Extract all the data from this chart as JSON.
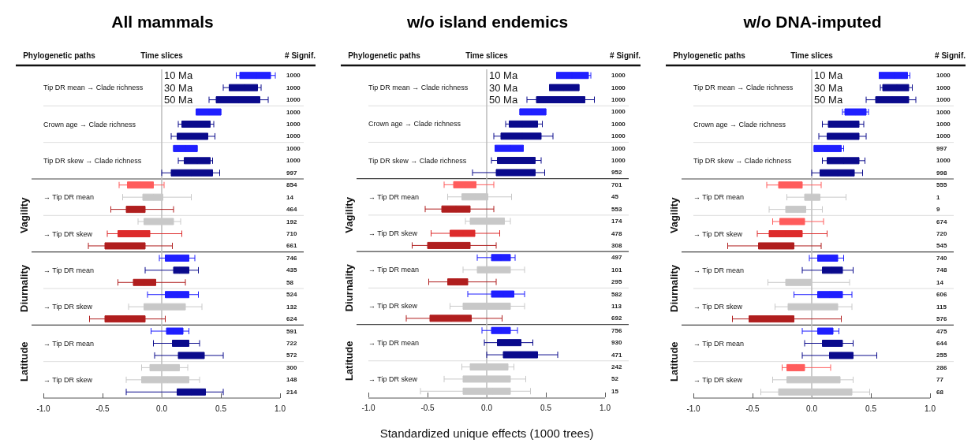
{
  "chart_data": [
    {
      "type": "box",
      "orientation": "horizontal",
      "title": "All mammals",
      "categories": [
        null,
        "Tip DR mean → Clade richness",
        null,
        null,
        "Crown age → Clade richness",
        null,
        null,
        "Tip DR skew → Clade richness",
        null,
        null,
        "→ Tip DR mean",
        null,
        null,
        "→ Tip DR skew",
        null,
        null,
        "→ Tip DR mean",
        null,
        null,
        "→ Tip DR skew",
        null,
        null,
        "→ Tip DR mean",
        null,
        null,
        "→ Tip DR skew",
        null
      ],
      "boxes": [
        {
          "low": 0.63,
          "q1": 0.66,
          "median": 0.8,
          "q3": 0.92,
          "high": 0.96
        },
        {
          "low": 0.52,
          "q1": 0.57,
          "median": 0.7,
          "q3": 0.81,
          "high": 0.84
        },
        {
          "low": 0.4,
          "q1": 0.46,
          "median": 0.65,
          "q3": 0.83,
          "high": 0.9
        },
        {
          "low": 0.29,
          "q1": 0.29,
          "median": 0.4,
          "q3": 0.5,
          "high": 0.5
        },
        {
          "low": 0.14,
          "q1": 0.17,
          "median": 0.3,
          "q3": 0.41,
          "high": 0.44
        },
        {
          "low": 0.08,
          "q1": 0.13,
          "median": 0.25,
          "q3": 0.39,
          "high": 0.45
        },
        {
          "low": 0.1,
          "q1": 0.1,
          "median": 0.2,
          "q3": 0.3,
          "high": 0.3
        },
        {
          "low": 0.14,
          "q1": 0.19,
          "median": 0.3,
          "q3": 0.41,
          "high": 0.43
        },
        {
          "low": 0.0,
          "q1": 0.08,
          "median": 0.25,
          "q3": 0.43,
          "high": 0.49
        },
        {
          "low": -0.36,
          "q1": -0.29,
          "median": -0.18,
          "q3": -0.07,
          "high": 0.02
        },
        {
          "low": -0.33,
          "q1": -0.16,
          "median": -0.07,
          "q3": 0.01,
          "high": 0.25
        },
        {
          "low": -0.43,
          "q1": -0.3,
          "median": -0.22,
          "q3": -0.14,
          "high": 0.1
        },
        {
          "low": -0.2,
          "q1": -0.15,
          "median": 0.0,
          "q3": 0.1,
          "high": 0.16
        },
        {
          "low": -0.46,
          "q1": -0.37,
          "median": -0.25,
          "q3": -0.1,
          "high": 0.17
        },
        {
          "low": -0.62,
          "q1": -0.48,
          "median": -0.3,
          "q3": -0.14,
          "high": 0.09
        },
        {
          "low": -0.02,
          "q1": 0.03,
          "median": 0.13,
          "q3": 0.23,
          "high": 0.28
        },
        {
          "low": -0.14,
          "q1": 0.1,
          "median": 0.15,
          "q3": 0.23,
          "high": 0.31
        },
        {
          "low": -0.37,
          "q1": -0.24,
          "median": -0.15,
          "q3": -0.05,
          "high": 0.2
        },
        {
          "low": -0.12,
          "q1": 0.03,
          "median": 0.13,
          "q3": 0.23,
          "high": 0.31
        },
        {
          "low": -0.28,
          "q1": -0.15,
          "median": 0.0,
          "q3": 0.2,
          "high": 0.34
        },
        {
          "low": -0.61,
          "q1": -0.48,
          "median": -0.3,
          "q3": -0.14,
          "high": 0.03
        },
        {
          "low": -0.09,
          "q1": 0.04,
          "median": 0.1,
          "q3": 0.18,
          "high": 0.23
        },
        {
          "low": -0.07,
          "q1": 0.09,
          "median": 0.16,
          "q3": 0.23,
          "high": 0.32
        },
        {
          "low": -0.06,
          "q1": 0.14,
          "median": 0.25,
          "q3": 0.36,
          "high": 0.52
        },
        {
          "low": -0.17,
          "q1": -0.1,
          "median": 0.0,
          "q3": 0.15,
          "high": 0.22
        },
        {
          "low": -0.3,
          "q1": -0.17,
          "median": 0.05,
          "q3": 0.23,
          "high": 0.32
        },
        {
          "low": -0.3,
          "q1": 0.13,
          "median": 0.25,
          "q3": 0.37,
          "high": 0.52
        }
      ],
      "colors": [
        "#1f1fff",
        "#0a0a8c",
        "#0a0a8c",
        "#1f1fff",
        "#0a0a8c",
        "#0a0a8c",
        "#1f1fff",
        "#0a0a8c",
        "#0a0a8c",
        "#ff5c5c",
        "#c8c8c8",
        "#b01e1e",
        "#c8c8c8",
        "#dd2b2b",
        "#b01e1e",
        "#1f1fff",
        "#0a0a8c",
        "#b01e1e",
        "#1f1fff",
        "#c8c8c8",
        "#b01e1e",
        "#1f1fff",
        "#0a0a8c",
        "#0a0a8c",
        "#c8c8c8",
        "#c8c8c8",
        "#0a0a8c"
      ],
      "value_labels": [
        "1000",
        "1000",
        "1000",
        "1000",
        "1000",
        "1000",
        "1000",
        "1000",
        "997",
        "854",
        "14",
        "464",
        "192",
        "710",
        "661",
        "746",
        "435",
        "58",
        "524",
        "132",
        "624",
        "591",
        "722",
        "572",
        "300",
        "148",
        "214"
      ],
      "xlim": [
        -1,
        1
      ],
      "xticks": [
        {
          "value": -1,
          "label": "-1.0"
        },
        {
          "value": -0.5,
          "label": "-0.5"
        },
        {
          "value": 0,
          "label": "0.0"
        },
        {
          "value": 0.5,
          "label": "0.5"
        },
        {
          "value": 1,
          "label": "1.0"
        }
      ],
      "ref_lines": [
        {
          "axis": "x",
          "value": 0,
          "color": "#bbbbbb"
        }
      ],
      "annotations": [
        "Phylogenetic paths",
        "Time slices",
        "# Signif.",
        "10 Ma",
        "30 Ma",
        "50 Ma",
        "Vagility",
        "Diurnality",
        "Latitude"
      ]
    },
    {
      "type": "box",
      "orientation": "horizontal",
      "title": "w/o island endemics",
      "xlabel": "Standardized unique effects (1000 trees)",
      "categories": [
        null,
        "Tip DR mean → Clade richness",
        null,
        null,
        "Crown age → Clade richness",
        null,
        null,
        "Tip DR skew → Clade richness",
        null,
        null,
        "→ Tip DR mean",
        null,
        null,
        "→ Tip DR skew",
        null,
        null,
        "→ Tip DR mean",
        null,
        null,
        "→ Tip DR skew",
        null,
        null,
        "→ Tip DR mean",
        null,
        null,
        "→ Tip DR skew",
        null
      ],
      "boxes": [
        {
          "low": 0.59,
          "q1": 0.59,
          "median": 0.72,
          "q3": 0.86,
          "high": 0.88
        },
        {
          "low": 0.53,
          "q1": 0.53,
          "median": 0.65,
          "q3": 0.78,
          "high": 0.78
        },
        {
          "low": 0.34,
          "q1": 0.42,
          "median": 0.62,
          "q3": 0.83,
          "high": 0.91
        },
        {
          "low": 0.28,
          "q1": 0.28,
          "median": 0.38,
          "q3": 0.5,
          "high": 0.5
        },
        {
          "low": 0.16,
          "q1": 0.19,
          "median": 0.3,
          "q3": 0.43,
          "high": 0.47
        },
        {
          "low": 0.06,
          "q1": 0.12,
          "median": 0.3,
          "q3": 0.46,
          "high": 0.56
        },
        {
          "low": 0.07,
          "q1": 0.07,
          "median": 0.2,
          "q3": 0.31,
          "high": 0.31
        },
        {
          "low": 0.04,
          "q1": 0.09,
          "median": 0.25,
          "q3": 0.41,
          "high": 0.46
        },
        {
          "low": -0.12,
          "q1": 0.08,
          "median": 0.25,
          "q3": 0.41,
          "high": 0.49
        },
        {
          "low": -0.36,
          "q1": -0.28,
          "median": -0.18,
          "q3": -0.09,
          "high": 0.06
        },
        {
          "low": -0.33,
          "q1": -0.21,
          "median": -0.1,
          "q3": 0.01,
          "high": 0.21
        },
        {
          "low": -0.52,
          "q1": -0.38,
          "median": -0.26,
          "q3": -0.14,
          "high": 0.06
        },
        {
          "low": -0.18,
          "q1": -0.14,
          "median": 0.0,
          "q3": 0.15,
          "high": 0.2
        },
        {
          "low": -0.47,
          "q1": -0.31,
          "median": -0.2,
          "q3": -0.1,
          "high": 0.11
        },
        {
          "low": -0.63,
          "q1": -0.5,
          "median": -0.32,
          "q3": -0.14,
          "high": 0.08
        },
        {
          "low": -0.08,
          "q1": 0.04,
          "median": 0.12,
          "q3": 0.2,
          "high": 0.24
        },
        {
          "low": -0.2,
          "q1": -0.08,
          "median": 0.05,
          "q3": 0.2,
          "high": 0.32
        },
        {
          "low": -0.49,
          "q1": -0.33,
          "median": -0.25,
          "q3": -0.16,
          "high": 0.08
        },
        {
          "low": -0.16,
          "q1": 0.04,
          "median": 0.14,
          "q3": 0.23,
          "high": 0.32
        },
        {
          "low": -0.31,
          "q1": -0.2,
          "median": 0.0,
          "q3": 0.2,
          "high": 0.32
        },
        {
          "low": -0.68,
          "q1": -0.48,
          "median": -0.3,
          "q3": -0.13,
          "high": 0.13
        },
        {
          "low": -0.04,
          "q1": 0.04,
          "median": 0.12,
          "q3": 0.2,
          "high": 0.26
        },
        {
          "low": -0.02,
          "q1": 0.09,
          "median": 0.19,
          "q3": 0.29,
          "high": 0.39
        },
        {
          "low": 0.0,
          "q1": 0.14,
          "median": 0.28,
          "q3": 0.43,
          "high": 0.6
        },
        {
          "low": -0.21,
          "q1": -0.14,
          "median": 0.0,
          "q3": 0.18,
          "high": 0.23
        },
        {
          "low": -0.36,
          "q1": -0.2,
          "median": 0.0,
          "q3": 0.2,
          "high": 0.33
        },
        {
          "low": -0.56,
          "q1": -0.2,
          "median": 0.05,
          "q3": 0.2,
          "high": 0.37
        }
      ],
      "colors": [
        "#1f1fff",
        "#0a0a8c",
        "#0a0a8c",
        "#1f1fff",
        "#0a0a8c",
        "#0a0a8c",
        "#1f1fff",
        "#0a0a8c",
        "#0a0a8c",
        "#ff5c5c",
        "#c8c8c8",
        "#b01e1e",
        "#c8c8c8",
        "#dd2b2b",
        "#b01e1e",
        "#1f1fff",
        "#c8c8c8",
        "#b01e1e",
        "#1f1fff",
        "#c8c8c8",
        "#b01e1e",
        "#1f1fff",
        "#0a0a8c",
        "#0a0a8c",
        "#c8c8c8",
        "#c8c8c8",
        "#c8c8c8"
      ],
      "value_labels": [
        "1000",
        "1000",
        "1000",
        "1000",
        "1000",
        "1000",
        "1000",
        "1000",
        "952",
        "701",
        "45",
        "553",
        "174",
        "478",
        "308",
        "497",
        "101",
        "295",
        "582",
        "113",
        "692",
        "756",
        "930",
        "471",
        "242",
        "52",
        "15"
      ],
      "xlim": [
        -1,
        1
      ],
      "xticks": [
        {
          "value": -1,
          "label": "-1.0"
        },
        {
          "value": -0.5,
          "label": "-0.5"
        },
        {
          "value": 0,
          "label": "0.0"
        },
        {
          "value": 0.5,
          "label": "0.5"
        },
        {
          "value": 1,
          "label": "1.0"
        }
      ],
      "ref_lines": [
        {
          "axis": "x",
          "value": 0,
          "color": "#bbbbbb"
        }
      ],
      "annotations": [
        "Phylogenetic paths",
        "Time slices",
        "# Signif.",
        "10 Ma",
        "30 Ma",
        "50 Ma",
        "Vagility",
        "Diurnality",
        "Latitude"
      ]
    },
    {
      "type": "box",
      "orientation": "horizontal",
      "title": "w/o DNA-imputed",
      "categories": [
        null,
        "Tip DR mean → Clade richness",
        null,
        null,
        "Crown age → Clade richness",
        null,
        null,
        "Tip DR skew → Clade richness",
        null,
        null,
        "→ Tip DR mean",
        null,
        null,
        "→ Tip DR skew",
        null,
        null,
        "→ Tip DR mean",
        null,
        null,
        "→ Tip DR skew",
        null,
        null,
        "→ Tip DR mean",
        null,
        null,
        "→ Tip DR skew",
        null
      ],
      "boxes": [
        {
          "low": 0.57,
          "q1": 0.57,
          "median": 0.7,
          "q3": 0.81,
          "high": 0.83
        },
        {
          "low": 0.58,
          "q1": 0.6,
          "median": 0.72,
          "q3": 0.82,
          "high": 0.85
        },
        {
          "low": 0.46,
          "q1": 0.54,
          "median": 0.68,
          "q3": 0.82,
          "high": 0.88
        },
        {
          "low": 0.26,
          "q1": 0.28,
          "median": 0.37,
          "q3": 0.46,
          "high": 0.48
        },
        {
          "low": 0.09,
          "q1": 0.14,
          "median": 0.27,
          "q3": 0.4,
          "high": 0.44
        },
        {
          "low": 0.06,
          "q1": 0.13,
          "median": 0.27,
          "q3": 0.4,
          "high": 0.46
        },
        {
          "low": 0.02,
          "q1": 0.02,
          "median": 0.13,
          "q3": 0.25,
          "high": 0.27
        },
        {
          "low": 0.09,
          "q1": 0.13,
          "median": 0.27,
          "q3": 0.4,
          "high": 0.45
        },
        {
          "low": 0.0,
          "q1": 0.07,
          "median": 0.22,
          "q3": 0.36,
          "high": 0.43
        },
        {
          "low": -0.38,
          "q1": -0.28,
          "median": -0.18,
          "q3": -0.08,
          "high": 0.08
        },
        {
          "low": -0.21,
          "q1": -0.06,
          "median": 0.0,
          "q3": 0.07,
          "high": 0.29
        },
        {
          "low": -0.36,
          "q1": -0.22,
          "median": -0.12,
          "q3": -0.05,
          "high": 0.09
        },
        {
          "low": -0.33,
          "q1": -0.27,
          "median": -0.17,
          "q3": -0.06,
          "high": 0.1
        },
        {
          "low": -0.46,
          "q1": -0.36,
          "median": -0.22,
          "q3": -0.08,
          "high": 0.13
        },
        {
          "low": -0.71,
          "q1": -0.45,
          "median": -0.3,
          "q3": -0.15,
          "high": 0.08
        },
        {
          "low": -0.02,
          "q1": 0.05,
          "median": 0.13,
          "q3": 0.22,
          "high": 0.27
        },
        {
          "low": -0.08,
          "q1": 0.09,
          "median": 0.17,
          "q3": 0.26,
          "high": 0.35
        },
        {
          "low": -0.37,
          "q1": -0.22,
          "median": -0.1,
          "q3": 0.0,
          "high": 0.32
        },
        {
          "low": -0.15,
          "q1": 0.05,
          "median": 0.15,
          "q3": 0.26,
          "high": 0.34
        },
        {
          "low": -0.31,
          "q1": -0.2,
          "median": 0.0,
          "q3": 0.22,
          "high": 0.34
        },
        {
          "low": -0.67,
          "q1": -0.53,
          "median": -0.35,
          "q3": -0.15,
          "high": 0.25
        },
        {
          "low": -0.08,
          "q1": 0.05,
          "median": 0.11,
          "q3": 0.18,
          "high": 0.23
        },
        {
          "low": -0.06,
          "q1": 0.09,
          "median": 0.17,
          "q3": 0.26,
          "high": 0.35
        },
        {
          "low": -0.08,
          "q1": 0.15,
          "median": 0.25,
          "q3": 0.35,
          "high": 0.55
        },
        {
          "low": -0.25,
          "q1": -0.21,
          "median": -0.13,
          "q3": -0.06,
          "high": 0.16
        },
        {
          "low": -0.33,
          "q1": -0.21,
          "median": 0.0,
          "q3": 0.24,
          "high": 0.35
        },
        {
          "low": -0.43,
          "q1": -0.28,
          "median": 0.05,
          "q3": 0.34,
          "high": 0.49
        }
      ],
      "colors": [
        "#1f1fff",
        "#0a0a8c",
        "#0a0a8c",
        "#1f1fff",
        "#0a0a8c",
        "#0a0a8c",
        "#1f1fff",
        "#0a0a8c",
        "#0a0a8c",
        "#ff5c5c",
        "#c8c8c8",
        "#c8c8c8",
        "#ff5c5c",
        "#dd2b2b",
        "#b01e1e",
        "#1f1fff",
        "#0a0a8c",
        "#c8c8c8",
        "#1f1fff",
        "#c8c8c8",
        "#b01e1e",
        "#1f1fff",
        "#0a0a8c",
        "#0a0a8c",
        "#ff5c5c",
        "#c8c8c8",
        "#c8c8c8"
      ],
      "value_labels": [
        "1000",
        "1000",
        "1000",
        "1000",
        "1000",
        "1000",
        "997",
        "1000",
        "998",
        "555",
        "1",
        "9",
        "674",
        "720",
        "545",
        "740",
        "748",
        "14",
        "606",
        "115",
        "576",
        "475",
        "644",
        "255",
        "286",
        "77",
        "68"
      ],
      "xlim": [
        -1,
        1
      ],
      "xticks": [
        {
          "value": -1,
          "label": "-1.0"
        },
        {
          "value": -0.5,
          "label": "-0.5"
        },
        {
          "value": 0,
          "label": "0.0"
        },
        {
          "value": 0.5,
          "label": "0.5"
        },
        {
          "value": 1,
          "label": "1.0"
        }
      ],
      "ref_lines": [
        {
          "axis": "x",
          "value": 0,
          "color": "#bbbbbb"
        }
      ],
      "annotations": [
        "Phylogenetic paths",
        "Time slices",
        "# Signif.",
        "10 Ma",
        "30 Ma",
        "50 Ma",
        "Vagility",
        "Diurnality",
        "Latitude"
      ]
    }
  ]
}
